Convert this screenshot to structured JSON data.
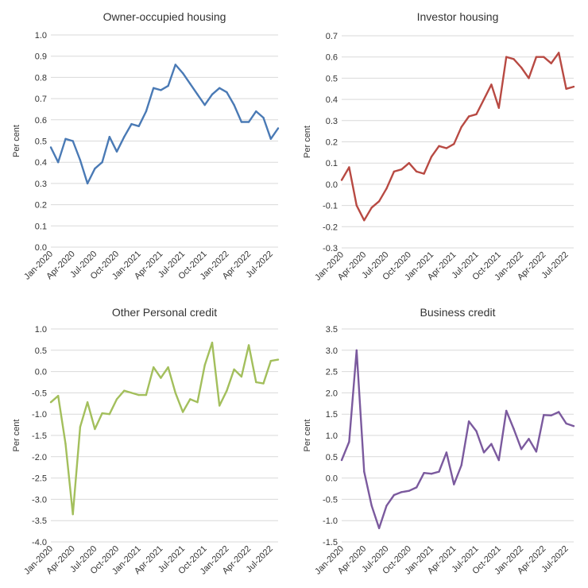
{
  "chart_data": [
    {
      "type": "line",
      "title": "Owner-occupied housing",
      "xlabel": "",
      "ylabel": "Per cent",
      "color": "#4a7ab5",
      "ylim": [
        0.0,
        1.0
      ],
      "yticks": [
        "1.0",
        "0.9",
        "0.8",
        "0.7",
        "0.6",
        "0.5",
        "0.4",
        "0.3",
        "0.2",
        "0.1",
        "0.0"
      ],
      "ytick_values": [
        1.0,
        0.9,
        0.8,
        0.7,
        0.6,
        0.5,
        0.4,
        0.3,
        0.2,
        0.1,
        0.0
      ],
      "xtick_labels": [
        "Jan-2020",
        "Apr-2020",
        "Jul-2020",
        "Oct-2020",
        "Jan-2021",
        "Apr-2021",
        "Jul-2021",
        "Oct-2021",
        "Jan-2022",
        "Apr-2022",
        "Jul-2022"
      ],
      "grid": "horizontal",
      "series": [
        {
          "values": [
            0.47,
            0.4,
            0.51,
            0.5,
            0.41,
            0.3,
            0.37,
            0.4,
            0.52,
            0.45,
            0.52,
            0.58,
            0.57,
            0.64,
            0.75,
            0.74,
            0.76,
            0.86,
            0.82,
            0.77,
            0.72,
            0.67,
            0.72,
            0.75,
            0.73,
            0.67,
            0.59,
            0.59,
            0.64,
            0.61,
            0.51,
            0.56
          ]
        }
      ]
    },
    {
      "type": "line",
      "title": "Investor housing",
      "xlabel": "",
      "ylabel": "Per cent",
      "color": "#b84a43",
      "ylim": [
        -0.3,
        0.7
      ],
      "yticks": [
        "0.7",
        "0.6",
        "0.5",
        "0.4",
        "0.3",
        "0.2",
        "0.1",
        "0.0",
        "-0.1",
        "-0.2",
        "-0.3"
      ],
      "ytick_values": [
        0.7,
        0.6,
        0.5,
        0.4,
        0.3,
        0.2,
        0.1,
        0.0,
        -0.1,
        -0.2,
        -0.3
      ],
      "xtick_labels": [
        "Jan-2020",
        "Apr-2020",
        "Jul-2020",
        "Oct-2020",
        "Jan-2021",
        "Apr-2021",
        "Jul-2021",
        "Oct-2021",
        "Jan-2022",
        "Apr-2022",
        "Jul-2022"
      ],
      "grid": "horizontal",
      "series": [
        {
          "values": [
            0.02,
            0.08,
            -0.1,
            -0.17,
            -0.11,
            -0.08,
            -0.02,
            0.06,
            0.07,
            0.1,
            0.06,
            0.05,
            0.13,
            0.18,
            0.17,
            0.19,
            0.27,
            0.32,
            0.33,
            0.4,
            0.47,
            0.36,
            0.6,
            0.59,
            0.55,
            0.5,
            0.6,
            0.6,
            0.57,
            0.62,
            0.45,
            0.46
          ]
        }
      ]
    },
    {
      "type": "line",
      "title": "Other Personal credit",
      "xlabel": "",
      "ylabel": "Per cent",
      "color": "#a3bf5c",
      "ylim": [
        -4.0,
        1.0
      ],
      "yticks": [
        "1.0",
        "0.5",
        "0.0",
        "-0.5",
        "-1.0",
        "-1.5",
        "-2.0",
        "-2.5",
        "-3.0",
        "-3.5",
        "-4.0"
      ],
      "ytick_values": [
        1.0,
        0.5,
        0.0,
        -0.5,
        -1.0,
        -1.5,
        -2.0,
        -2.5,
        -3.0,
        -3.5,
        -4.0
      ],
      "xtick_labels": [
        "Jan-2020",
        "Apr-2020",
        "Jul-2020",
        "Oct-2020",
        "Jan-2021",
        "Apr-2021",
        "Jul-2021",
        "Oct-2021",
        "Jan-2022",
        "Apr-2022",
        "Jul-2022"
      ],
      "grid": "horizontal",
      "series": [
        {
          "values": [
            -0.72,
            -0.57,
            -1.7,
            -3.35,
            -1.3,
            -0.72,
            -1.35,
            -0.98,
            -1.0,
            -0.65,
            -0.45,
            -0.5,
            -0.55,
            -0.55,
            0.1,
            -0.15,
            0.1,
            -0.5,
            -0.95,
            -0.65,
            -0.72,
            0.15,
            0.68,
            -0.8,
            -0.45,
            0.05,
            -0.12,
            0.62,
            -0.25,
            -0.28,
            0.25,
            0.28
          ]
        }
      ]
    },
    {
      "type": "line",
      "title": "Business credit",
      "xlabel": "",
      "ylabel": "Per cent",
      "color": "#7b5a9e",
      "ylim": [
        -1.5,
        3.5
      ],
      "yticks": [
        "3.5",
        "3.0",
        "2.5",
        "2.0",
        "1.5",
        "1.0",
        "0.5",
        "0.0",
        "-0.5",
        "-1.0",
        "-1.5"
      ],
      "ytick_values": [
        3.5,
        3.0,
        2.5,
        2.0,
        1.5,
        1.0,
        0.5,
        0.0,
        -0.5,
        -1.0,
        -1.5
      ],
      "xtick_labels": [
        "Jan-2020",
        "Apr-2020",
        "Jul-2020",
        "Oct-2020",
        "Jan-2021",
        "Apr-2021",
        "Jul-2021",
        "Oct-2021",
        "Jan-2022",
        "Apr-2022",
        "Jul-2022"
      ],
      "grid": "horizontal",
      "series": [
        {
          "values": [
            0.42,
            0.85,
            3.0,
            0.15,
            -0.65,
            -1.18,
            -0.65,
            -0.4,
            -0.33,
            -0.3,
            -0.22,
            0.12,
            0.1,
            0.15,
            0.6,
            -0.15,
            0.3,
            1.33,
            1.1,
            0.6,
            0.8,
            0.42,
            1.58,
            1.15,
            0.68,
            0.92,
            0.62,
            1.48,
            1.47,
            1.55,
            1.28,
            1.22
          ]
        }
      ]
    }
  ]
}
